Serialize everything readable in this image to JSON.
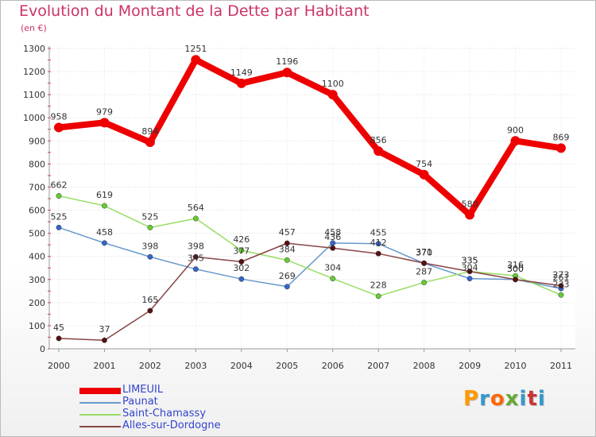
{
  "chart_data": {
    "type": "line",
    "title": "Evolution du Montant de la Dette par Habitant",
    "unit": "(en €)",
    "x": [
      "2000",
      "2001",
      "2002",
      "2003",
      "2004",
      "2005",
      "2006",
      "2007",
      "2008",
      "2009",
      "2010",
      "2011"
    ],
    "ylim": [
      0,
      1300
    ],
    "yticks": [
      0,
      100,
      200,
      300,
      400,
      500,
      600,
      700,
      800,
      900,
      1000,
      1100,
      1200,
      1300
    ],
    "grid": true,
    "legend_position": "bottom-left",
    "series": [
      {
        "name": "LIMEUIL",
        "color": "#ee0000",
        "point_color": "#ee0000",
        "values": [
          958,
          979,
          894,
          1251,
          1149,
          1196,
          1100,
          856,
          754,
          580,
          900,
          869
        ]
      },
      {
        "name": "Paunat",
        "color": "#6699cc",
        "point_color": "#3366cc",
        "values": [
          525,
          458,
          398,
          345,
          302,
          269,
          458,
          455,
          370,
          304,
          300,
          261
        ]
      },
      {
        "name": "Saint-Chamassy",
        "color": "#99dd66",
        "point_color": "#66cc33",
        "values": [
          662,
          619,
          525,
          564,
          426,
          384,
          304,
          228,
          287,
          335,
          316,
          233
        ]
      },
      {
        "name": "Alles-sur-Dordogne",
        "color": "#884444",
        "point_color": "#551111",
        "values": [
          45,
          37,
          165,
          398,
          377,
          457,
          436,
          412,
          371,
          335,
          300,
          273
        ]
      }
    ]
  },
  "logo": {
    "text": "Proxiti",
    "colors": [
      "#ff9900",
      "#3399cc",
      "#ff6600",
      "#66aa33",
      "#3399cc",
      "#cc3333",
      "#3399cc"
    ]
  }
}
